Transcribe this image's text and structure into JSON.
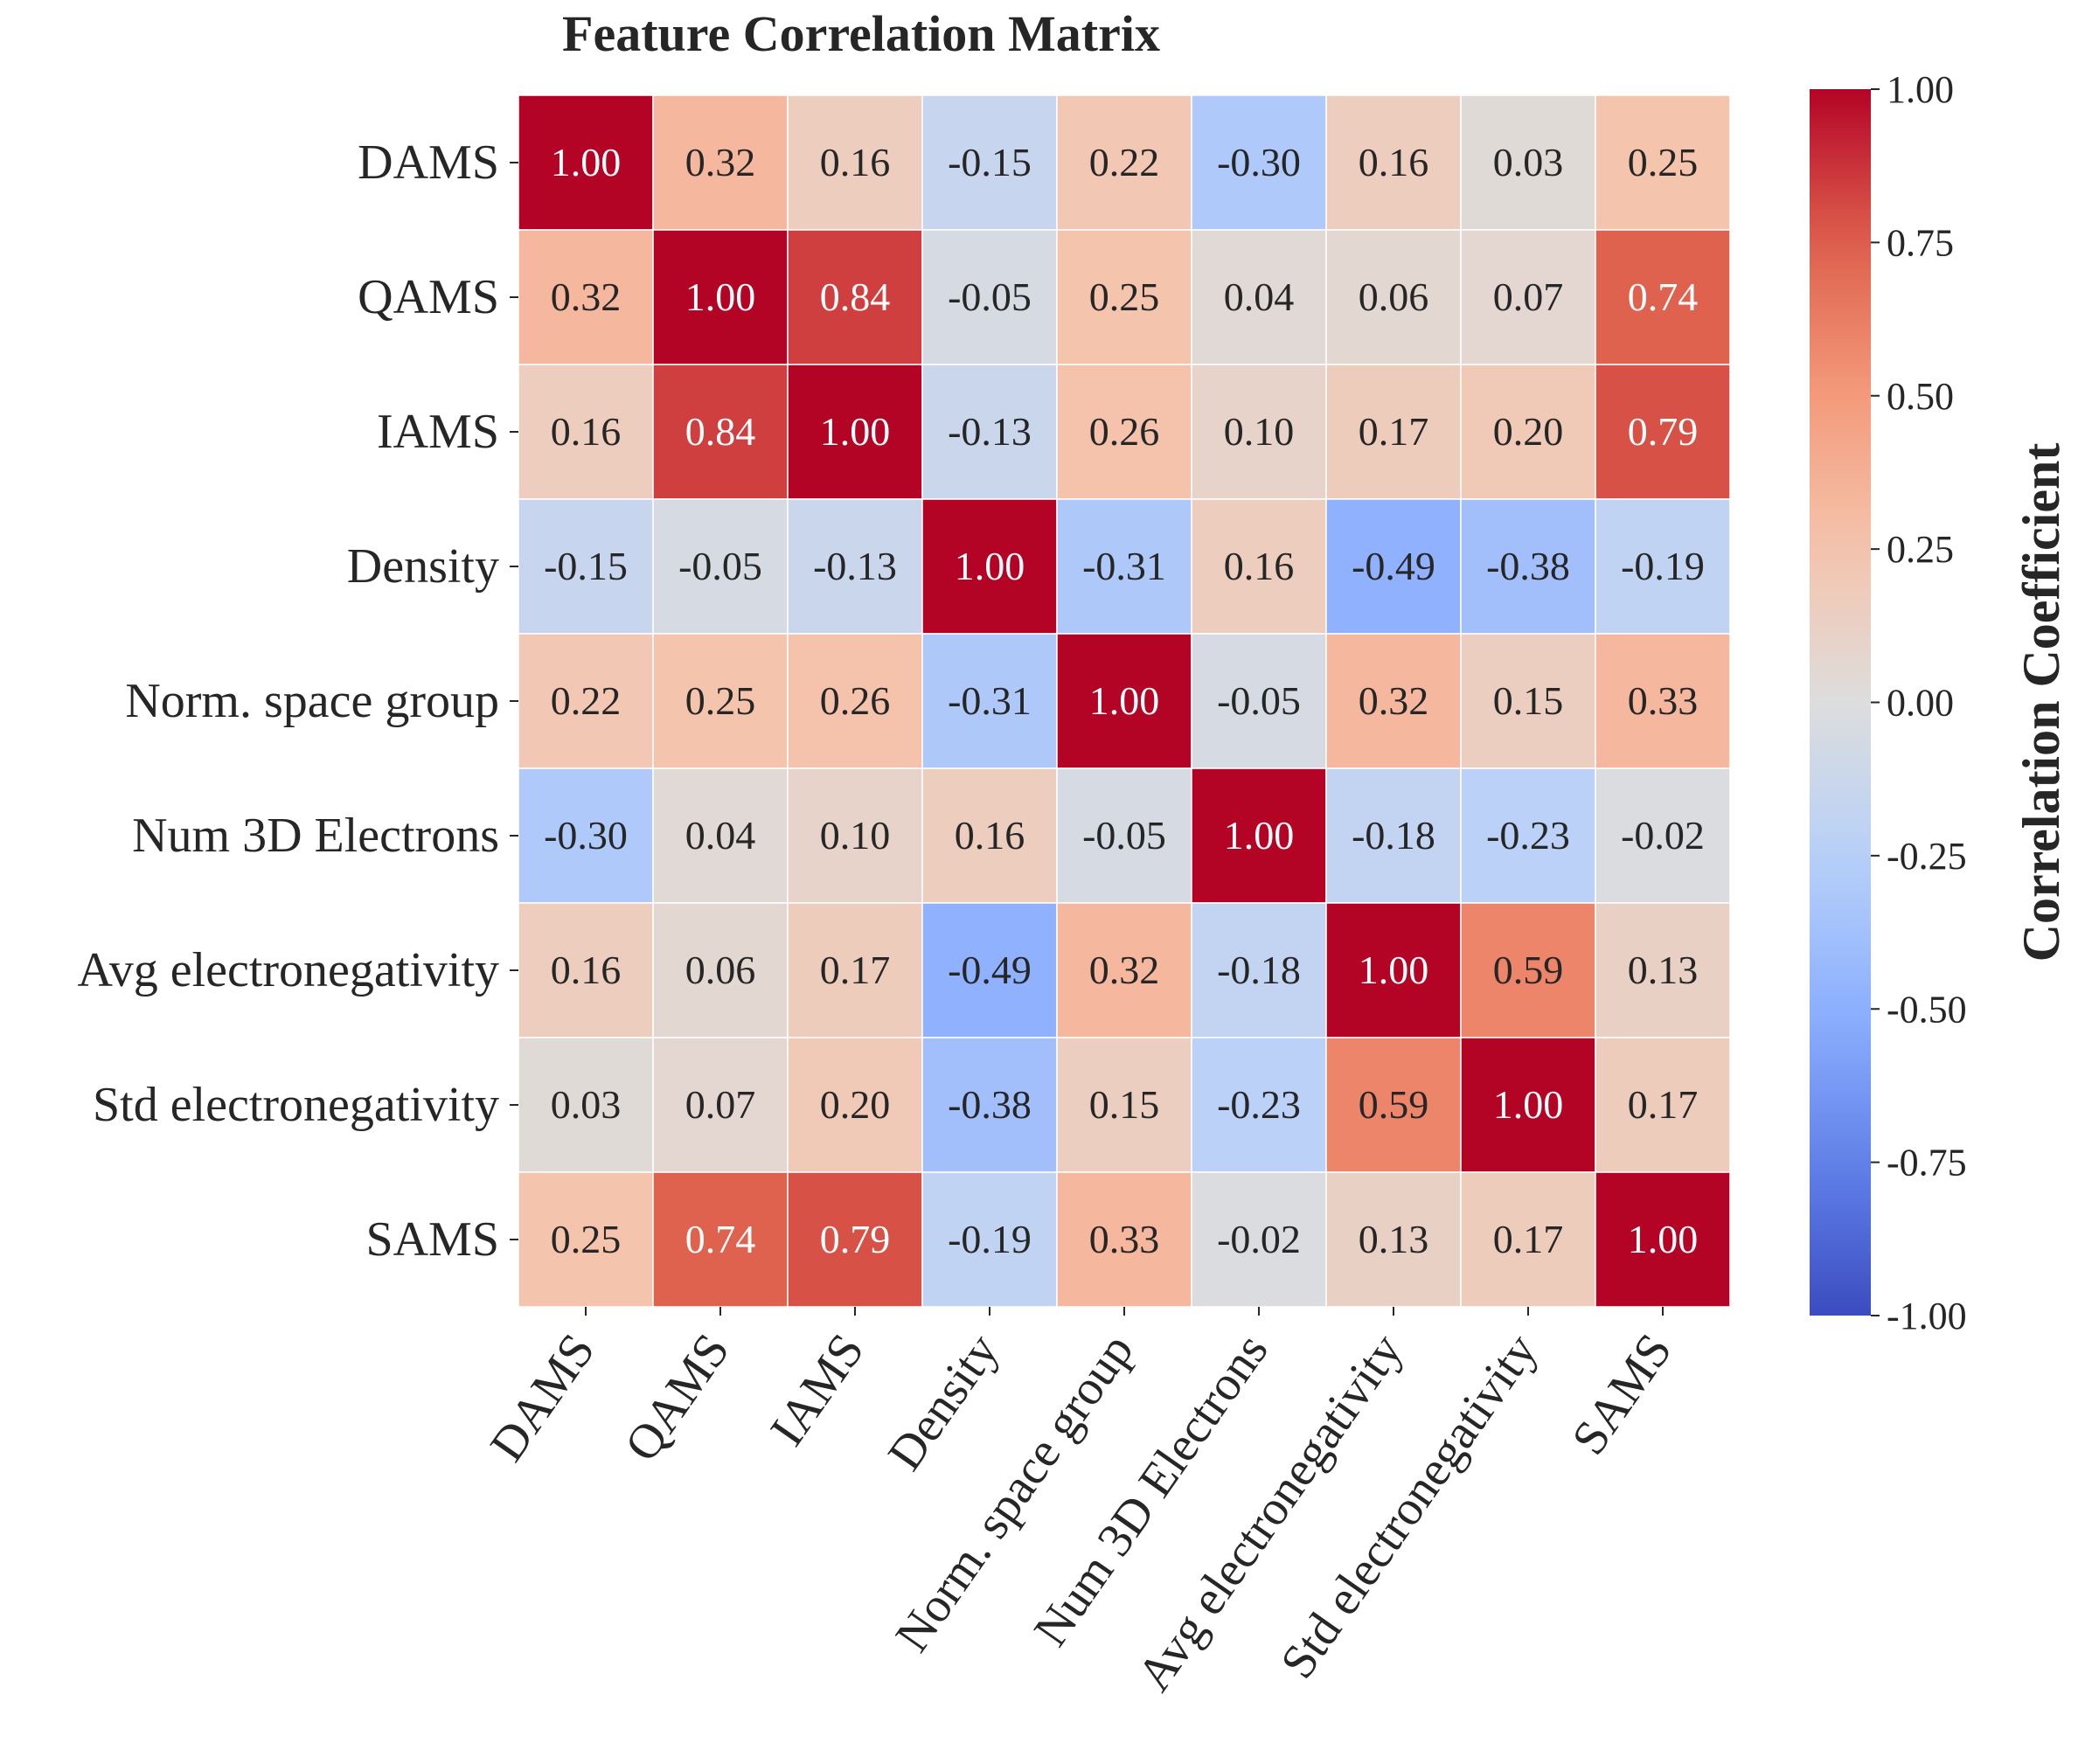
{
  "chart_data": {
    "type": "heatmap",
    "title": "Feature Correlation Matrix",
    "labels": [
      "DAMS",
      "QAMS",
      "IAMS",
      "Density",
      "Norm. space group",
      "Num 3D Electrons",
      "Avg electronegativity",
      "Std electronegativity",
      "SAMS"
    ],
    "values": [
      [
        1.0,
        0.32,
        0.16,
        -0.15,
        0.22,
        -0.3,
        0.16,
        0.03,
        0.25
      ],
      [
        0.32,
        1.0,
        0.84,
        -0.05,
        0.25,
        0.04,
        0.06,
        0.07,
        0.74
      ],
      [
        0.16,
        0.84,
        1.0,
        -0.13,
        0.26,
        0.1,
        0.17,
        0.2,
        0.79
      ],
      [
        -0.15,
        -0.05,
        -0.13,
        1.0,
        -0.31,
        0.16,
        -0.49,
        -0.38,
        -0.19
      ],
      [
        0.22,
        0.25,
        0.26,
        -0.31,
        1.0,
        -0.05,
        0.32,
        0.15,
        0.33
      ],
      [
        -0.3,
        0.04,
        0.1,
        0.16,
        -0.05,
        1.0,
        -0.18,
        -0.23,
        -0.02
      ],
      [
        0.16,
        0.06,
        0.17,
        -0.49,
        0.32,
        -0.18,
        1.0,
        0.59,
        0.13
      ],
      [
        0.03,
        0.07,
        0.2,
        -0.38,
        0.15,
        -0.23,
        0.59,
        1.0,
        0.17
      ],
      [
        0.25,
        0.74,
        0.79,
        -0.19,
        0.33,
        -0.02,
        0.13,
        0.17,
        1.0
      ]
    ],
    "value_range": [
      -1.0,
      1.0
    ],
    "colormap": "coolwarm",
    "colorbar": {
      "label": "Correlation Coefficient",
      "ticks": [
        "1.00",
        "0.75",
        "0.50",
        "0.25",
        "0.00",
        "-0.25",
        "-0.50",
        "-0.75",
        "-1.00"
      ]
    }
  }
}
